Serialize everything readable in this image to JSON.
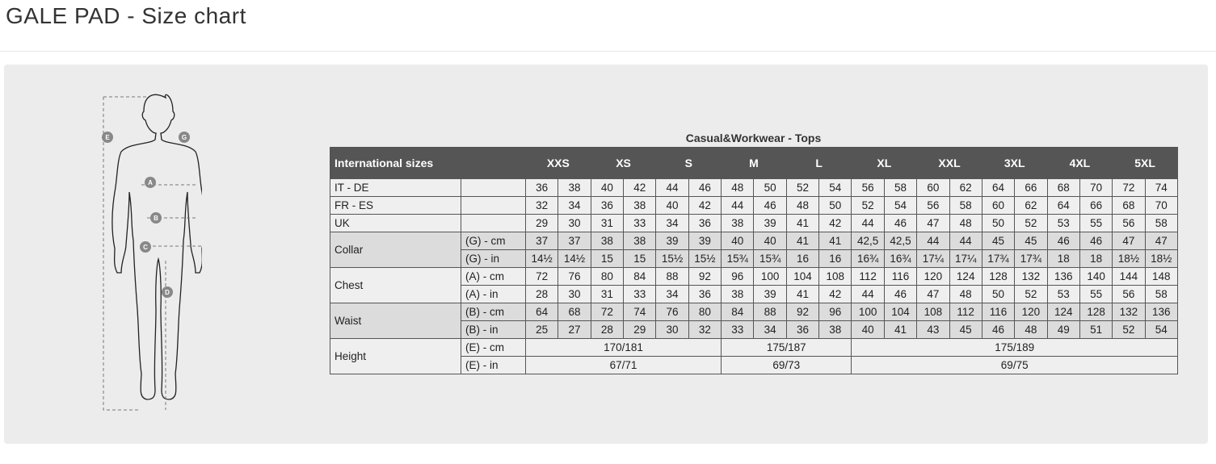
{
  "page_title": "GALE PAD - Size chart",
  "figure": {
    "markers": [
      "E",
      "G",
      "A",
      "B",
      "C",
      "D"
    ]
  },
  "table": {
    "caption": "Casual&Workwear - Tops",
    "header_first": "International sizes",
    "sizes": [
      "XXS",
      "XS",
      "S",
      "M",
      "L",
      "XL",
      "XXL",
      "3XL",
      "4XL",
      "5XL"
    ],
    "rows": [
      {
        "label": "IT - DE",
        "sub": "",
        "shade": false,
        "values": [
          "36",
          "38",
          "40",
          "42",
          "44",
          "46",
          "48",
          "50",
          "52",
          "54",
          "56",
          "58",
          "60",
          "62",
          "64",
          "66",
          "68",
          "70",
          "72",
          "74"
        ]
      },
      {
        "label": "FR - ES",
        "sub": "",
        "shade": false,
        "values": [
          "32",
          "34",
          "36",
          "38",
          "40",
          "42",
          "44",
          "46",
          "48",
          "50",
          "52",
          "54",
          "56",
          "58",
          "60",
          "62",
          "64",
          "66",
          "68",
          "70"
        ]
      },
      {
        "label": "UK",
        "sub": "",
        "shade": false,
        "values": [
          "29",
          "30",
          "31",
          "33",
          "34",
          "36",
          "38",
          "39",
          "41",
          "42",
          "44",
          "46",
          "47",
          "48",
          "50",
          "52",
          "53",
          "55",
          "56",
          "58"
        ]
      },
      {
        "label": "Collar",
        "sub": "(G) - cm",
        "shade": true,
        "group_start": true,
        "values": [
          "37",
          "37",
          "38",
          "38",
          "39",
          "39",
          "40",
          "40",
          "41",
          "41",
          "42,5",
          "42,5",
          "44",
          "44",
          "45",
          "45",
          "46",
          "46",
          "47",
          "47"
        ]
      },
      {
        "sub": "(G)  - in",
        "shade": true,
        "values": [
          "14½",
          "14½",
          "15",
          "15",
          "15½",
          "15½",
          "15¾",
          "15¾",
          "16",
          "16",
          "16¾",
          "16¾",
          "17¼",
          "17¼",
          "17¾",
          "17¾",
          "18",
          "18",
          "18½",
          "18½"
        ]
      },
      {
        "label": "Chest",
        "sub": "(A) - cm",
        "shade": false,
        "group_start": true,
        "values": [
          "72",
          "76",
          "80",
          "84",
          "88",
          "92",
          "96",
          "100",
          "104",
          "108",
          "112",
          "116",
          "120",
          "124",
          "128",
          "132",
          "136",
          "140",
          "144",
          "148"
        ]
      },
      {
        "sub": "(A) - in",
        "shade": false,
        "values": [
          "28",
          "30",
          "31",
          "33",
          "34",
          "36",
          "38",
          "39",
          "41",
          "42",
          "44",
          "46",
          "47",
          "48",
          "50",
          "52",
          "53",
          "55",
          "56",
          "58"
        ]
      },
      {
        "label": "Waist",
        "sub": "(B) - cm",
        "shade": true,
        "group_start": true,
        "values": [
          "64",
          "68",
          "72",
          "74",
          "76",
          "80",
          "84",
          "88",
          "92",
          "96",
          "100",
          "104",
          "108",
          "112",
          "116",
          "120",
          "124",
          "128",
          "132",
          "136"
        ]
      },
      {
        "sub": "(B) - in",
        "shade": true,
        "values": [
          "25",
          "27",
          "28",
          "29",
          "30",
          "32",
          "33",
          "34",
          "36",
          "38",
          "40",
          "41",
          "43",
          "45",
          "46",
          "48",
          "49",
          "51",
          "52",
          "54"
        ]
      },
      {
        "label": "Height",
        "sub": "(E) - cm",
        "shade": false,
        "group_start": true,
        "spans": [
          {
            "text": "170/181",
            "cols": 6
          },
          {
            "text": "175/187",
            "cols": 4
          },
          {
            "text": "175/189",
            "cols": 10
          }
        ]
      },
      {
        "sub": "(E) - in",
        "shade": false,
        "spans": [
          {
            "text": "67/71",
            "cols": 6
          },
          {
            "text": "69/73",
            "cols": 4
          },
          {
            "text": "69/75",
            "cols": 10
          }
        ]
      }
    ]
  }
}
